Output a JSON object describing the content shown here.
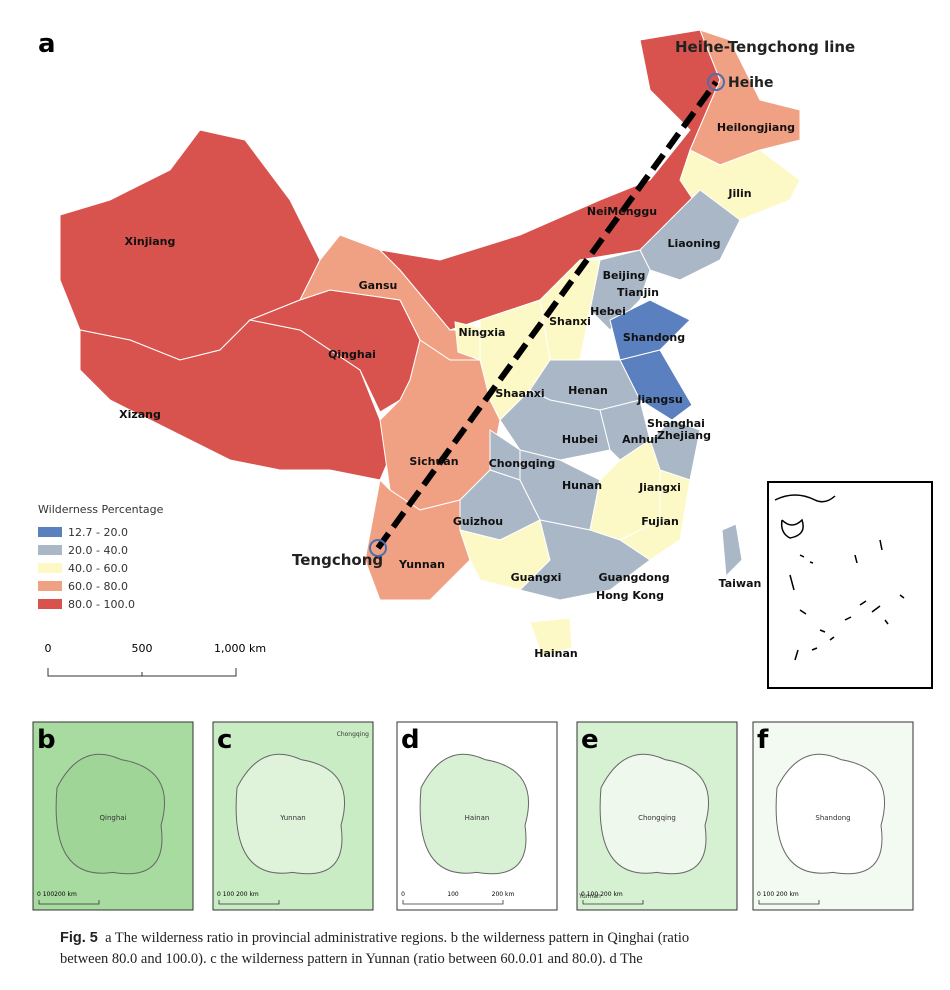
{
  "main_map": {
    "panel_label": "a",
    "line_label": "Heihe-Tengchong line",
    "endpoints": [
      "Heihe",
      "Tengchong"
    ],
    "provinces": [
      "Xinjiang",
      "Xizang",
      "Qinghai",
      "Gansu",
      "NeiMenggu",
      "Heilongjiang",
      "Jilin",
      "Liaoning",
      "Beijing",
      "Tianjin",
      "Hebei",
      "Shanxi",
      "Ningxia",
      "Shaanxi",
      "Shandong",
      "Jiangsu",
      "Shanghai",
      "Henan",
      "Hubei",
      "Anhui",
      "Zhejiang",
      "Sichuan",
      "Chongqing",
      "Guizhou",
      "Hunan",
      "Jiangxi",
      "Fujian",
      "Yunnan",
      "Guangxi",
      "Guangdong",
      "Hong Kong",
      "Hainan",
      "Taiwan"
    ],
    "legend": {
      "title": "Wilderness Percentage",
      "items": [
        {
          "label": "12.7  - 20.0",
          "color": "#5b80c0"
        },
        {
          "label": "20.0  - 40.0",
          "color": "#a9b7c6"
        },
        {
          "label": "40.0  - 60.0",
          "color": "#fdf9c6"
        },
        {
          "label": "60.0  - 80.0",
          "color": "#f1a183"
        },
        {
          "label": "80.0  - 100.0",
          "color": "#d9534e"
        }
      ]
    },
    "scale_labels": [
      "0",
      "500",
      "1,000 km"
    ]
  },
  "panels": [
    {
      "label": "b",
      "region": "Qinghai",
      "scale": "0  100200 km"
    },
    {
      "label": "c",
      "region": "Yunnan",
      "extra": "Chongqing",
      "scale": "0    100   200 km"
    },
    {
      "label": "d",
      "region": "Hainan",
      "scale": [
        "0",
        "100",
        "200 km"
      ]
    },
    {
      "label": "e",
      "region": "Chongqing",
      "extra": "Yunnan",
      "scale": "0      100      200 km"
    },
    {
      "label": "f",
      "region": "Shandong",
      "scale": "0     100   200 km"
    }
  ],
  "caption": {
    "fig": "Fig. 5",
    "lines": [
      "a The wilderness ratio in provincial administrative regions. b the wilderness pattern in Qinghai (ratio",
      "between 80.0 and 100.0). c the wilderness pattern in Yunnan (ratio between 60.0.01 and 80.0). d The"
    ]
  }
}
